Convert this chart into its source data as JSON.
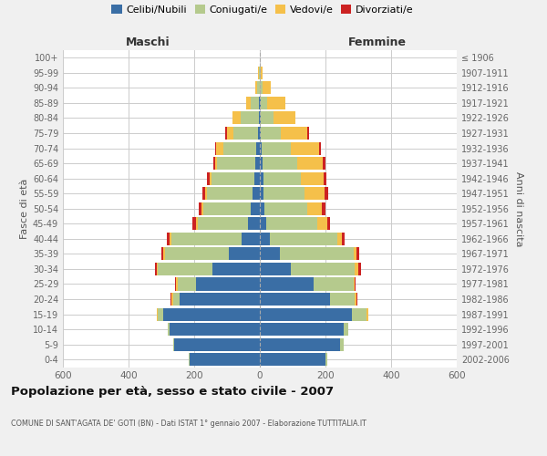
{
  "age_groups": [
    "0-4",
    "5-9",
    "10-14",
    "15-19",
    "20-24",
    "25-29",
    "30-34",
    "35-39",
    "40-44",
    "45-49",
    "50-54",
    "55-59",
    "60-64",
    "65-69",
    "70-74",
    "75-79",
    "80-84",
    "85-89",
    "90-94",
    "95-99",
    "100+"
  ],
  "birth_years": [
    "2002-2006",
    "1997-2001",
    "1992-1996",
    "1987-1991",
    "1982-1986",
    "1977-1981",
    "1972-1976",
    "1967-1971",
    "1962-1966",
    "1957-1961",
    "1952-1956",
    "1947-1951",
    "1942-1946",
    "1937-1941",
    "1932-1936",
    "1927-1931",
    "1922-1926",
    "1917-1921",
    "1912-1916",
    "1907-1911",
    "≤ 1906"
  ],
  "male": {
    "celibi": [
      215,
      260,
      275,
      295,
      245,
      195,
      145,
      95,
      55,
      35,
      28,
      22,
      18,
      15,
      12,
      6,
      3,
      3,
      1,
      1,
      0
    ],
    "coniugati": [
      2,
      5,
      5,
      15,
      20,
      55,
      165,
      195,
      215,
      155,
      145,
      140,
      130,
      115,
      100,
      75,
      55,
      25,
      8,
      2,
      0
    ],
    "vedovi": [
      0,
      0,
      0,
      5,
      5,
      5,
      5,
      5,
      5,
      5,
      5,
      5,
      5,
      5,
      20,
      20,
      25,
      15,
      5,
      2,
      0
    ],
    "divorziati": [
      0,
      0,
      0,
      0,
      2,
      3,
      5,
      5,
      8,
      10,
      8,
      8,
      8,
      8,
      5,
      5,
      0,
      0,
      0,
      0,
      0
    ]
  },
  "female": {
    "nubili": [
      200,
      245,
      255,
      280,
      215,
      165,
      95,
      60,
      30,
      20,
      15,
      12,
      10,
      8,
      5,
      4,
      3,
      2,
      1,
      1,
      0
    ],
    "coniugate": [
      5,
      10,
      15,
      45,
      75,
      120,
      195,
      225,
      205,
      155,
      130,
      125,
      115,
      105,
      90,
      60,
      40,
      20,
      8,
      2,
      0
    ],
    "vedove": [
      0,
      0,
      0,
      5,
      5,
      5,
      10,
      10,
      15,
      30,
      45,
      60,
      70,
      80,
      85,
      80,
      65,
      55,
      25,
      5,
      1
    ],
    "divorziate": [
      0,
      0,
      0,
      0,
      2,
      3,
      8,
      8,
      8,
      10,
      10,
      10,
      8,
      8,
      5,
      5,
      0,
      0,
      0,
      0,
      0
    ]
  },
  "colors": {
    "celibi": "#3a6ea5",
    "coniugati": "#b5ca8d",
    "vedovi": "#f5c04a",
    "divorziati": "#cc2222"
  },
  "xlim": 600,
  "title": "Popolazione per età, sesso e stato civile - 2007",
  "subtitle": "COMUNE DI SANT'AGATA DE' GOTI (BN) - Dati ISTAT 1° gennaio 2007 - Elaborazione TUTTITALIA.IT",
  "ylabel_left": "Fasce di età",
  "ylabel_right": "Anni di nascita",
  "xlabel_left": "Maschi",
  "xlabel_right": "Femmine",
  "bg_color": "#f0f0f0",
  "plot_bg_color": "#ffffff",
  "grid_color": "#cccccc"
}
